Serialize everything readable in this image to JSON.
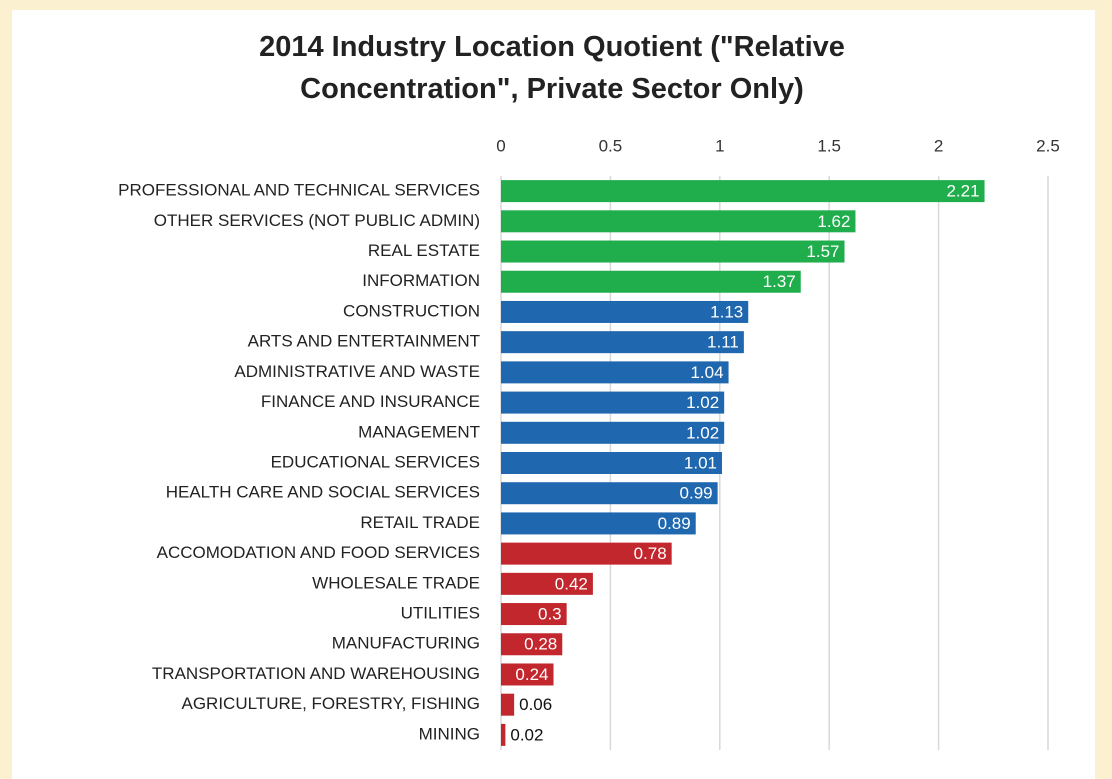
{
  "chart_data": {
    "type": "hbar",
    "title": "2014 Industry Location Quotient (\"Relative Concentration\", Private Sector  Only)",
    "categories": [
      "PROFESSIONAL AND TECHNICAL SERVICES",
      "OTHER SERVICES (NOT PUBLIC ADMIN)",
      "REAL ESTATE",
      "INFORMATION",
      "CONSTRUCTION",
      "ARTS AND ENTERTAINMENT",
      "ADMINISTRATIVE AND WASTE",
      "FINANCE AND INSURANCE",
      "MANAGEMENT",
      "EDUCATIONAL SERVICES",
      "HEALTH CARE AND SOCIAL SERVICES",
      "RETAIL TRADE",
      "ACCOMODATION AND FOOD SERVICES",
      "WHOLESALE TRADE",
      "UTILITIES",
      "MANUFACTURING",
      "TRANSPORTATION AND WAREHOUSING",
      "AGRICULTURE, FORESTRY, FISHING",
      "MINING"
    ],
    "values": [
      2.21,
      1.62,
      1.57,
      1.37,
      1.13,
      1.11,
      1.04,
      1.02,
      1.02,
      1.01,
      0.99,
      0.89,
      0.78,
      0.42,
      0.3,
      0.28,
      0.24,
      0.06,
      0.02
    ],
    "colors": [
      "#1fae4b",
      "#1fae4b",
      "#1fae4b",
      "#1fae4b",
      "#1f67ae",
      "#1f67ae",
      "#1f67ae",
      "#1f67ae",
      "#1f67ae",
      "#1f67ae",
      "#1f67ae",
      "#1f67ae",
      "#c1272d",
      "#c1272d",
      "#c1272d",
      "#c1272d",
      "#c1272d",
      "#c1272d",
      "#c1272d"
    ],
    "xlim": [
      0,
      2.5
    ],
    "xticks": [
      0,
      0.5,
      1,
      1.5,
      2,
      2.5
    ],
    "grid": true
  }
}
